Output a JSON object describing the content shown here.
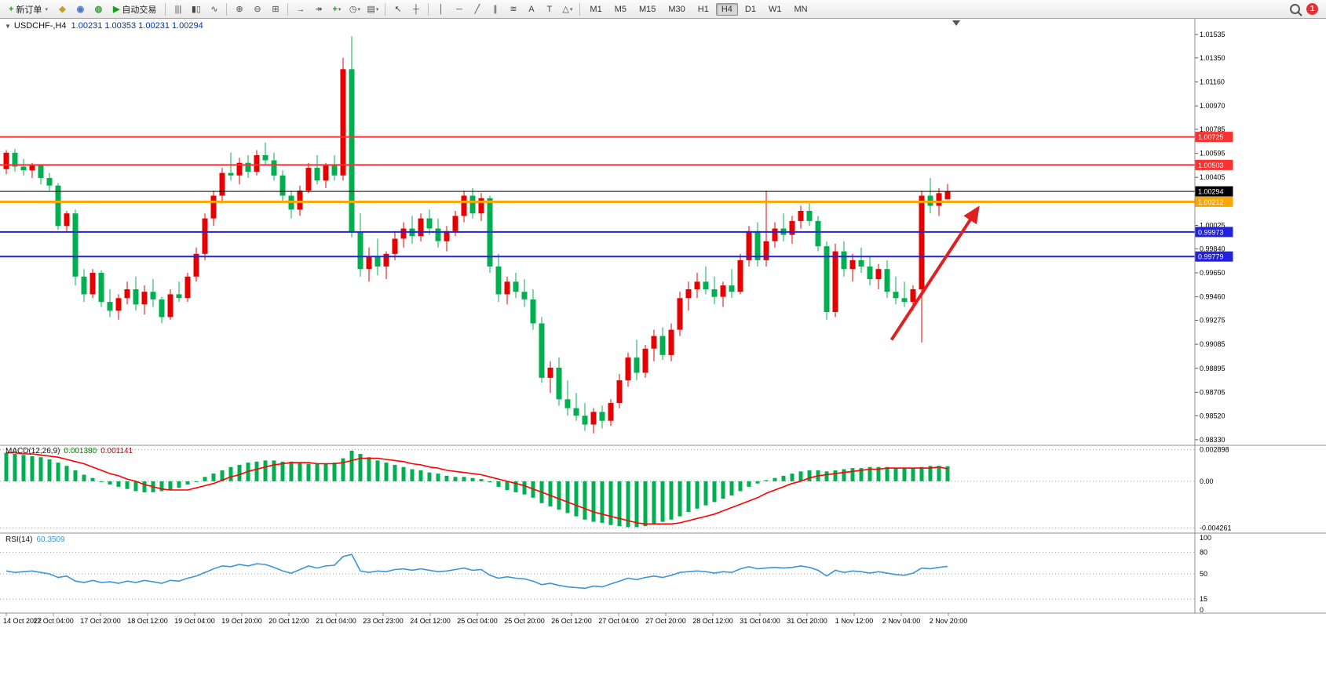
{
  "toolbar": {
    "new_order": "新订单",
    "auto_trading": "自动交易",
    "timeframes": [
      "M1",
      "M5",
      "M15",
      "M30",
      "H1",
      "H4",
      "D1",
      "W1",
      "MN"
    ],
    "active_timeframe": "H4",
    "notification_count": "1",
    "items": [
      {
        "n": "new-order-button",
        "g": "+",
        "c": "#1a9b1a",
        "label": "新订单",
        "dd": true
      },
      {
        "n": "market-watch-icon",
        "g": "◆",
        "c": "#c8a028"
      },
      {
        "n": "data-window-icon",
        "g": "◉",
        "c": "#4878b8"
      },
      {
        "n": "strategy-tester-icon",
        "g": "◍",
        "c": "#3a9a3a"
      },
      {
        "n": "auto-trading-button",
        "g": "▶",
        "c": "#18a018",
        "label": "自动交易"
      },
      {
        "sep": true
      },
      {
        "n": "bar-chart-icon",
        "g": "|||"
      },
      {
        "n": "candlestick-chart-icon",
        "g": "▮▯"
      },
      {
        "n": "line-chart-icon",
        "g": "∿"
      },
      {
        "sep": true
      },
      {
        "n": "zoom-in-icon",
        "g": "⊕"
      },
      {
        "n": "zoom-out-icon",
        "g": "⊖"
      },
      {
        "n": "tile-windows-icon",
        "g": "⊞"
      },
      {
        "sep": true
      },
      {
        "n": "auto-scroll-icon",
        "g": "→"
      },
      {
        "n": "chart-shift-icon",
        "g": "↠"
      },
      {
        "n": "indicators-button",
        "g": "+",
        "c": "#1a9b1a",
        "dd": true
      },
      {
        "n": "periods-button",
        "g": "◷",
        "dd": true
      },
      {
        "n": "templates-button",
        "g": "▤",
        "dd": true
      },
      {
        "sep": true
      },
      {
        "n": "cursor-icon",
        "g": "↖"
      },
      {
        "n": "crosshair-icon",
        "g": "┼"
      },
      {
        "sep": true
      },
      {
        "n": "vertical-line-icon",
        "g": "│"
      },
      {
        "n": "horizontal-line-icon",
        "g": "─"
      },
      {
        "n": "trendline-icon",
        "g": "╱"
      },
      {
        "n": "channel-icon",
        "g": "∥"
      },
      {
        "n": "fibonacci-icon",
        "g": "≋"
      },
      {
        "n": "text-icon",
        "g": "A"
      },
      {
        "n": "label-icon",
        "g": "T"
      },
      {
        "n": "shapes-button",
        "g": "△",
        "dd": true
      },
      {
        "sep": true
      }
    ]
  },
  "chart": {
    "title_symbol": "USDCHF-,H4",
    "title_ohlc": "1.00231 1.00353 1.00231 1.00294",
    "macd_label": "MACD(12,26,9)",
    "macd_value": "0.001380",
    "macd_signal_value": "0.001141",
    "rsi_label": "RSI(14)",
    "rsi_value": "60.3509"
  },
  "chart_data": {
    "type": "candlestick",
    "symbol": "USDCHF-",
    "timeframe": "H4",
    "colors": {
      "bull": "#e60000",
      "bear": "#00b050",
      "macd_hist": "#00b050",
      "macd_signal": "#ff0000",
      "rsi": "#3b95d8",
      "arrow": "#e02020"
    },
    "price_ylim": [
      0.98286,
      1.01665
    ],
    "price_axis_labels": [
      "1.01535",
      "1.01350",
      "1.01160",
      "1.00970",
      "1.00785",
      "1.00595",
      "1.00405",
      "1.00215",
      "1.00025",
      "0.99840",
      "0.99650",
      "0.99460",
      "0.99275",
      "0.99085",
      "0.98895",
      "0.98705",
      "0.98520",
      "0.98330"
    ],
    "hlines": [
      {
        "price": 1.00725,
        "color": "#ff3030",
        "width": 2,
        "label": "1.00725"
      },
      {
        "price": 1.00503,
        "color": "#ff3030",
        "width": 2,
        "label": "1.00503"
      },
      {
        "price": 1.00294,
        "color": "#000000",
        "width": 1,
        "label": "1.00294",
        "type": "bid"
      },
      {
        "price": 1.00212,
        "color": "#ffa500",
        "width": 3,
        "label": "1.00212"
      },
      {
        "price": 0.99973,
        "color": "#2222dd",
        "width": 2,
        "label": "0.99973"
      },
      {
        "price": 0.99779,
        "color": "#2222dd",
        "width": 2,
        "label": "0.99779"
      }
    ],
    "arrow": {
      "from_bar": 102.5,
      "from_price": 0.9912,
      "to_bar": 112.5,
      "to_price": 1.0016
    },
    "shift_marker_bar": 110,
    "candles": [
      [
        1.0047,
        1.0062,
        1.0043,
        1.006
      ],
      [
        1.006,
        1.0063,
        1.0045,
        1.0049
      ],
      [
        1.0049,
        1.0055,
        1.0042,
        1.0046
      ],
      [
        1.0046,
        1.0052,
        1.004,
        1.005
      ],
      [
        1.005,
        1.0051,
        1.0035,
        1.004
      ],
      [
        1.004,
        1.0044,
        1.003,
        1.0034
      ],
      [
        1.0034,
        1.0036,
        0.9999,
        1.0002
      ],
      [
        1.0002,
        1.0014,
        0.9998,
        1.0012
      ],
      [
        1.0012,
        1.0015,
        0.9955,
        0.9962
      ],
      [
        0.9962,
        0.9968,
        0.9942,
        0.9948
      ],
      [
        0.9948,
        0.9968,
        0.9945,
        0.9965
      ],
      [
        0.9965,
        0.9967,
        0.9938,
        0.9942
      ],
      [
        0.9942,
        0.9952,
        0.993,
        0.9935
      ],
      [
        0.9935,
        0.9948,
        0.9928,
        0.9945
      ],
      [
        0.9945,
        0.9958,
        0.994,
        0.9952
      ],
      [
        0.9952,
        0.9962,
        0.9935,
        0.994
      ],
      [
        0.994,
        0.9955,
        0.9932,
        0.995
      ],
      [
        0.995,
        0.996,
        0.9938,
        0.9944
      ],
      [
        0.9944,
        0.9946,
        0.9925,
        0.993
      ],
      [
        0.993,
        0.9952,
        0.9928,
        0.9948
      ],
      [
        0.9948,
        0.9958,
        0.9942,
        0.9945
      ],
      [
        0.9945,
        0.9965,
        0.9942,
        0.9962
      ],
      [
        0.9962,
        0.9985,
        0.9958,
        0.998
      ],
      [
        0.998,
        1.0012,
        0.9975,
        1.0008
      ],
      [
        1.0008,
        1.003,
        1.0002,
        1.0026
      ],
      [
        1.0026,
        1.0048,
        1.002,
        1.0044
      ],
      [
        1.0044,
        1.006,
        1.0038,
        1.0042
      ],
      [
        1.0042,
        1.0056,
        1.0035,
        1.0052
      ],
      [
        1.0052,
        1.0058,
        1.004,
        1.0045
      ],
      [
        1.0045,
        1.0062,
        1.0042,
        1.0058
      ],
      [
        1.0058,
        1.0068,
        1.005,
        1.0054
      ],
      [
        1.0054,
        1.006,
        1.0038,
        1.0042
      ],
      [
        1.0042,
        1.0046,
        1.0022,
        1.0026
      ],
      [
        1.0026,
        1.003,
        1.0008,
        1.0015
      ],
      [
        1.0015,
        1.0034,
        1.001,
        1.003
      ],
      [
        1.003,
        1.0052,
        1.0028,
        1.0048
      ],
      [
        1.0048,
        1.0058,
        1.0035,
        1.0038
      ],
      [
        1.0038,
        1.0052,
        1.0032,
        1.005
      ],
      [
        1.005,
        1.0058,
        1.0038,
        1.0042
      ],
      [
        1.0042,
        1.0135,
        1.0038,
        1.0126
      ],
      [
        1.0126,
        1.0152,
        0.9993,
        0.9997
      ],
      [
        0.9997,
        1.0012,
        0.9962,
        0.9968
      ],
      [
        0.9968,
        0.9985,
        0.9958,
        0.9978
      ],
      [
        0.9978,
        0.9992,
        0.9963,
        0.997
      ],
      [
        0.997,
        0.9982,
        0.996,
        0.998
      ],
      [
        0.998,
        0.9998,
        0.9975,
        0.9992
      ],
      [
        0.9992,
        1.0005,
        0.9985,
        1.0
      ],
      [
        1.0,
        1.001,
        0.9988,
        0.9994
      ],
      [
        0.9994,
        1.0012,
        0.999,
        1.0008
      ],
      [
        1.0008,
        1.0015,
        0.9995,
        1.0
      ],
      [
        1.0,
        1.0008,
        0.9985,
        0.999
      ],
      [
        0.999,
        1.0002,
        0.9982,
        0.9998
      ],
      [
        0.9998,
        1.0014,
        0.9994,
        1.001
      ],
      [
        1.001,
        1.003,
        1.0005,
        1.0026
      ],
      [
        1.0026,
        1.0032,
        1.0008,
        1.0012
      ],
      [
        1.0012,
        1.0028,
        1.0006,
        1.0024
      ],
      [
        1.0024,
        1.0026,
        0.9965,
        0.997
      ],
      [
        0.997,
        0.998,
        0.9942,
        0.9948
      ],
      [
        0.9948,
        0.9962,
        0.994,
        0.9958
      ],
      [
        0.9958,
        0.9965,
        0.9945,
        0.995
      ],
      [
        0.995,
        0.996,
        0.9938,
        0.9944
      ],
      [
        0.9944,
        0.9952,
        0.992,
        0.9925
      ],
      [
        0.9925,
        0.993,
        0.9878,
        0.9882
      ],
      [
        0.9882,
        0.9895,
        0.987,
        0.989
      ],
      [
        0.989,
        0.9898,
        0.986,
        0.9865
      ],
      [
        0.9865,
        0.988,
        0.9852,
        0.9858
      ],
      [
        0.9858,
        0.987,
        0.9848,
        0.9852
      ],
      [
        0.9852,
        0.9862,
        0.984,
        0.9845
      ],
      [
        0.9845,
        0.9858,
        0.9838,
        0.9855
      ],
      [
        0.9855,
        0.986,
        0.9842,
        0.9848
      ],
      [
        0.9848,
        0.9865,
        0.9844,
        0.9862
      ],
      [
        0.9862,
        0.9885,
        0.9858,
        0.988
      ],
      [
        0.988,
        0.9902,
        0.9875,
        0.9898
      ],
      [
        0.9898,
        0.9912,
        0.988,
        0.9886
      ],
      [
        0.9886,
        0.9908,
        0.9882,
        0.9905
      ],
      [
        0.9905,
        0.992,
        0.9895,
        0.9915
      ],
      [
        0.9915,
        0.9922,
        0.9896,
        0.99
      ],
      [
        0.99,
        0.9925,
        0.9895,
        0.992
      ],
      [
        0.992,
        0.995,
        0.9915,
        0.9945
      ],
      [
        0.9945,
        0.9958,
        0.9935,
        0.9952
      ],
      [
        0.9952,
        0.9965,
        0.9945,
        0.9958
      ],
      [
        0.9958,
        0.997,
        0.9948,
        0.9952
      ],
      [
        0.9952,
        0.9962,
        0.994,
        0.9946
      ],
      [
        0.9946,
        0.9958,
        0.9938,
        0.9955
      ],
      [
        0.9955,
        0.9968,
        0.9945,
        0.995
      ],
      [
        0.995,
        0.998,
        0.9948,
        0.9975
      ],
      [
        0.9975,
        1.0002,
        0.997,
        0.9998
      ],
      [
        0.9998,
        1.0005,
        0.997,
        0.9975
      ],
      [
        0.9975,
        1.003,
        0.997,
        0.999
      ],
      [
        0.999,
        1.0005,
        0.9985,
        1.0
      ],
      [
        1.0,
        1.0012,
        0.999,
        0.9995
      ],
      [
        0.9995,
        1.001,
        0.9988,
        1.0006
      ],
      [
        1.0006,
        1.0018,
        1.0,
        1.0014
      ],
      [
        1.0014,
        1.002,
        1.0002,
        1.0006
      ],
      [
        1.0006,
        1.001,
        0.9982,
        0.9986
      ],
      [
        0.9986,
        0.999,
        0.9928,
        0.9934
      ],
      [
        0.9934,
        0.9988,
        0.993,
        0.9982
      ],
      [
        0.9982,
        0.999,
        0.9962,
        0.9968
      ],
      [
        0.9968,
        0.998,
        0.9958,
        0.9975
      ],
      [
        0.9975,
        0.9985,
        0.9965,
        0.997
      ],
      [
        0.997,
        0.9978,
        0.9955,
        0.996
      ],
      [
        0.996,
        0.9972,
        0.9952,
        0.9968
      ],
      [
        0.9968,
        0.9975,
        0.9945,
        0.995
      ],
      [
        0.995,
        0.9962,
        0.994,
        0.9945
      ],
      [
        0.9945,
        0.9958,
        0.9938,
        0.9942
      ],
      [
        0.9942,
        0.9955,
        0.9935,
        0.9952
      ],
      [
        0.9952,
        1.003,
        0.991,
        1.0026
      ],
      [
        1.0026,
        1.004,
        1.0012,
        1.0018
      ],
      [
        1.0018,
        1.0032,
        1.001,
        1.0028
      ],
      [
        1.00231,
        1.00353,
        1.00231,
        1.00294
      ]
    ],
    "macd": {
      "ylim": [
        -0.00445,
        0.003
      ],
      "axis_labels": [
        "0.002898",
        "0.00",
        "-0.004261"
      ],
      "axis_values": [
        0.002898,
        0,
        -0.004261
      ],
      "hist": [
        0.0026,
        0.0025,
        0.0024,
        0.0023,
        0.0022,
        0.002,
        0.0017,
        0.0014,
        0.001,
        0.0006,
        0.0003,
        0.0,
        -0.0003,
        -0.0005,
        -0.0007,
        -0.0009,
        -0.001,
        -0.001,
        -0.0009,
        -0.0008,
        -0.0006,
        -0.0003,
        0.0,
        0.0004,
        0.0007,
        0.001,
        0.0013,
        0.0015,
        0.0017,
        0.0018,
        0.0019,
        0.0019,
        0.0018,
        0.0018,
        0.0017,
        0.0016,
        0.0016,
        0.0016,
        0.0017,
        0.0021,
        0.0028,
        0.0025,
        0.0022,
        0.0019,
        0.0017,
        0.0015,
        0.0013,
        0.0011,
        0.001,
        0.0008,
        0.0007,
        0.0005,
        0.0004,
        0.0004,
        0.0003,
        0.0002,
        -0.0001,
        -0.0005,
        -0.0008,
        -0.001,
        -0.0012,
        -0.0015,
        -0.002,
        -0.0023,
        -0.0026,
        -0.0029,
        -0.0032,
        -0.0035,
        -0.0037,
        -0.0038,
        -0.004,
        -0.0041,
        -0.0042,
        -0.0042,
        -0.0041,
        -0.0039,
        -0.0037,
        -0.0035,
        -0.0032,
        -0.0028,
        -0.0025,
        -0.0022,
        -0.0019,
        -0.0016,
        -0.0013,
        -0.0009,
        -0.0005,
        -0.0002,
        0.0001,
        0.0003,
        0.0005,
        0.0007,
        0.0009,
        0.001,
        0.001,
        0.0009,
        0.001,
        0.0011,
        0.0012,
        0.0012,
        0.0013,
        0.0013,
        0.0013,
        0.0012,
        0.0012,
        0.0012,
        0.0013,
        0.0014,
        0.0014,
        0.00138
      ],
      "signal": [
        0.0026,
        0.0026,
        0.0025,
        0.0025,
        0.0024,
        0.0023,
        0.0022,
        0.002,
        0.0018,
        0.0016,
        0.0013,
        0.001,
        0.0007,
        0.0005,
        0.0002,
        0.0,
        -0.0003,
        -0.0005,
        -0.0007,
        -0.0008,
        -0.0008,
        -0.0008,
        -0.0006,
        -0.0004,
        -0.0002,
        0.0001,
        0.0004,
        0.0006,
        0.0009,
        0.0011,
        0.0013,
        0.0015,
        0.0016,
        0.0017,
        0.0017,
        0.0017,
        0.0016,
        0.0016,
        0.0016,
        0.0017,
        0.0019,
        0.0021,
        0.0021,
        0.0021,
        0.002,
        0.0019,
        0.0018,
        0.0016,
        0.0015,
        0.0013,
        0.0012,
        0.001,
        0.0009,
        0.0008,
        0.0007,
        0.0006,
        0.0004,
        0.0002,
        0.0,
        -0.0002,
        -0.0004,
        -0.0007,
        -0.001,
        -0.0013,
        -0.0016,
        -0.0019,
        -0.0022,
        -0.0025,
        -0.0028,
        -0.003,
        -0.0032,
        -0.0034,
        -0.0036,
        -0.0038,
        -0.0039,
        -0.0039,
        -0.0039,
        -0.0039,
        -0.0038,
        -0.0036,
        -0.0034,
        -0.0032,
        -0.003,
        -0.0027,
        -0.0024,
        -0.0021,
        -0.0018,
        -0.0015,
        -0.0011,
        -0.0008,
        -0.0005,
        -0.0002,
        0.0,
        0.0003,
        0.0005,
        0.0006,
        0.0007,
        0.0008,
        0.0009,
        0.001,
        0.0011,
        0.0011,
        0.0012,
        0.0012,
        0.0012,
        0.0012,
        0.0012,
        0.0012,
        0.0013,
        0.00114
      ]
    },
    "rsi": {
      "ylim": [
        0,
        100
      ],
      "levels": [
        80,
        50,
        15
      ],
      "axis_labels": [
        "100",
        "80",
        "50",
        "15",
        "0"
      ],
      "axis_values": [
        100,
        80,
        50,
        15,
        0
      ],
      "values": [
        54,
        52,
        53,
        54,
        52,
        50,
        45,
        47,
        40,
        38,
        41,
        38,
        39,
        37,
        40,
        38,
        41,
        39,
        37,
        41,
        40,
        44,
        47,
        52,
        57,
        61,
        60,
        63,
        61,
        64,
        63,
        59,
        54,
        51,
        56,
        61,
        58,
        61,
        62,
        74,
        77,
        54,
        52,
        54,
        53,
        56,
        57,
        55,
        57,
        55,
        53,
        54,
        56,
        58,
        55,
        56,
        48,
        44,
        46,
        44,
        43,
        40,
        35,
        37,
        34,
        32,
        31,
        30,
        33,
        32,
        36,
        40,
        44,
        42,
        45,
        47,
        45,
        48,
        52,
        53,
        54,
        53,
        51,
        53,
        52,
        57,
        60,
        57,
        58,
        59,
        58,
        59,
        61,
        59,
        55,
        47,
        55,
        52,
        54,
        53,
        51,
        53,
        51,
        49,
        48,
        51,
        58,
        57,
        59,
        60.35
      ]
    },
    "time_axis_labels": [
      "14 Oct 2022",
      "17 Oct 04:00",
      "17 Oct 20:00",
      "18 Oct 12:00",
      "19 Oct 04:00",
      "19 Oct 20:00",
      "20 Oct 12:00",
      "21 Oct 04:00",
      "23 Oct 23:00",
      "24 Oct 12:00",
      "25 Oct 04:00",
      "25 Oct 20:00",
      "26 Oct 12:00",
      "27 Oct 04:00",
      "27 Oct 20:00",
      "28 Oct 12:00",
      "31 Oct 04:00",
      "31 Oct 20:00",
      "1 Nov 12:00",
      "2 Nov 04:00",
      "2 Nov 20:00"
    ]
  }
}
